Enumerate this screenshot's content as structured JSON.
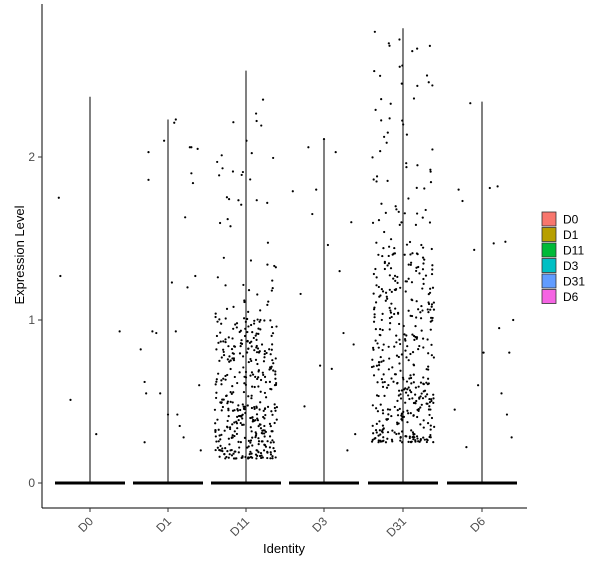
{
  "chart_data": {
    "type": "violin-jitter",
    "xlabel": "Identity",
    "ylabel": "Expression Level",
    "ylim": [
      -0.15,
      2.9
    ],
    "yticks": [
      0,
      1,
      2
    ],
    "categories": [
      "D0",
      "D1",
      "D11",
      "D3",
      "D31",
      "D6"
    ],
    "colors": {
      "D0": "#F8766D",
      "D1": "#B79F00",
      "D11": "#00BA38",
      "D3": "#00BFC4",
      "D31": "#619CFF",
      "D6": "#F564E3"
    },
    "violin_max": [
      2.37,
      2.23,
      2.53,
      2.11,
      2.79,
      2.34
    ],
    "nonzero_points": {
      "D0": [
        [
          -0.4,
          1.75
        ],
        [
          -0.38,
          1.27
        ],
        [
          -0.25,
          0.51
        ],
        [
          0.08,
          0.3
        ],
        [
          0.38,
          0.93
        ]
      ],
      "D1": [
        [
          -0.35,
          0.82
        ],
        [
          -0.3,
          0.62
        ],
        [
          -0.28,
          0.55
        ],
        [
          -0.3,
          0.25
        ],
        [
          -0.25,
          2.03
        ],
        [
          -0.25,
          1.86
        ],
        [
          -0.2,
          0.93
        ],
        [
          -0.15,
          0.92
        ],
        [
          -0.1,
          0.55
        ],
        [
          -0.05,
          2.1
        ],
        [
          0,
          0.42
        ],
        [
          0.05,
          1.23
        ],
        [
          0.08,
          2.21
        ],
        [
          0.1,
          2.23
        ],
        [
          0.1,
          0.93
        ],
        [
          0.12,
          0.42
        ],
        [
          0.15,
          0.35
        ],
        [
          0.2,
          0.28
        ],
        [
          0.22,
          1.63
        ],
        [
          0.25,
          1.2
        ],
        [
          0.28,
          2.06
        ],
        [
          0.3,
          2.06
        ],
        [
          0.3,
          1.9
        ],
        [
          0.32,
          1.84
        ],
        [
          0.35,
          1.27
        ],
        [
          0.38,
          2.05
        ],
        [
          0.4,
          0.6
        ],
        [
          0.42,
          0.2
        ]
      ],
      "D3": [
        [
          -0.4,
          1.79
        ],
        [
          -0.3,
          1.16
        ],
        [
          -0.25,
          0.47
        ],
        [
          -0.2,
          2.06
        ],
        [
          -0.15,
          1.65
        ],
        [
          -0.1,
          1.8
        ],
        [
          -0.05,
          0.72
        ],
        [
          0,
          2.11
        ],
        [
          0.05,
          1.46
        ],
        [
          0.1,
          0.7
        ],
        [
          0.15,
          2.03
        ],
        [
          0.2,
          1.3
        ],
        [
          0.25,
          0.92
        ],
        [
          0.3,
          0.2
        ],
        [
          0.35,
          1.6
        ],
        [
          0.38,
          0.85
        ],
        [
          0.4,
          0.3
        ]
      ],
      "D6": [
        [
          -0.35,
          0.45
        ],
        [
          -0.3,
          1.8
        ],
        [
          -0.25,
          1.73
        ],
        [
          -0.2,
          0.22
        ],
        [
          -0.15,
          2.33
        ],
        [
          -0.1,
          1.43
        ],
        [
          -0.05,
          0.6
        ],
        [
          0.02,
          0.8
        ],
        [
          0.1,
          1.81
        ],
        [
          0.15,
          1.47
        ],
        [
          0.2,
          1.82
        ],
        [
          0.22,
          0.95
        ],
        [
          0.25,
          0.55
        ],
        [
          0.3,
          1.48
        ],
        [
          0.32,
          0.42
        ],
        [
          0.35,
          0.8
        ],
        [
          0.38,
          0.28
        ],
        [
          0.4,
          1.0
        ]
      ]
    },
    "dense_clouds": {
      "D11": {
        "count": 380,
        "y_range": [
          0.15,
          1.0
        ],
        "sparse_count": 55,
        "sparse_y_range": [
          1.0,
          2.45
        ]
      },
      "D31": {
        "count": 380,
        "y_range": [
          0.25,
          1.4
        ],
        "sparse_count": 80,
        "sparse_y_range": [
          1.4,
          2.8
        ]
      }
    },
    "legend_position": "right",
    "grid": false
  }
}
